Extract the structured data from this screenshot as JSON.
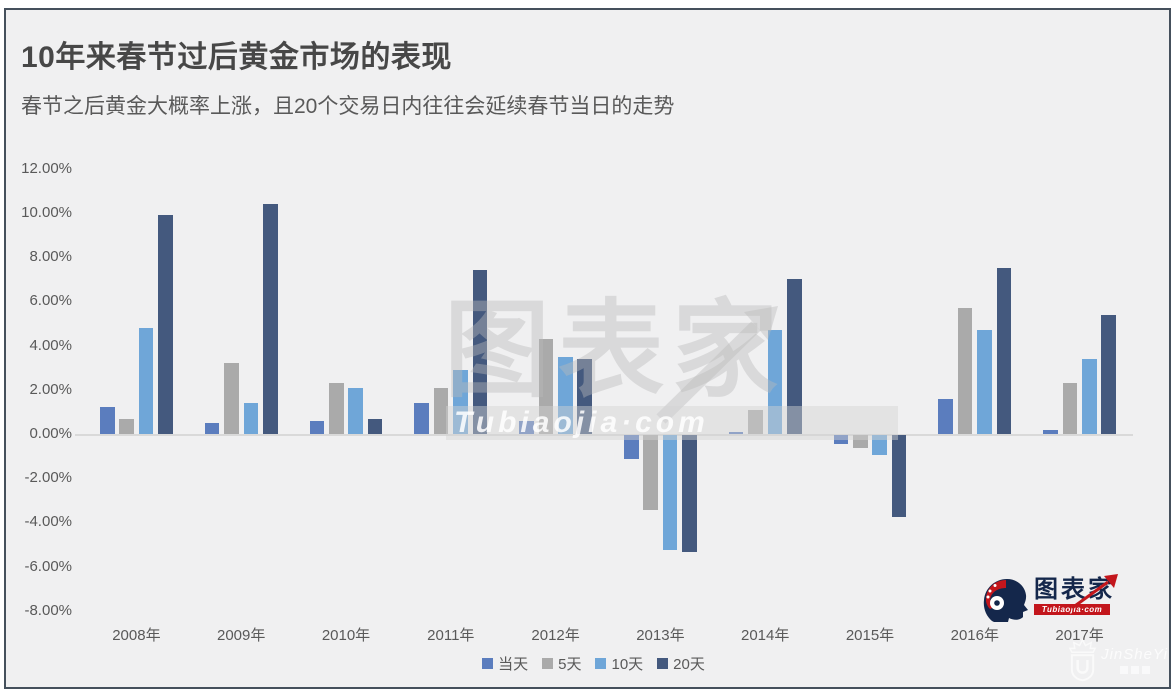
{
  "chart_data": {
    "type": "bar",
    "title": "10年来春节过后黄金市场的表现",
    "subtitle": "春节之后黄金大概率上涨，且20个交易日内往往会延续春节当日的走势",
    "categories": [
      "2008年",
      "2009年",
      "2010年",
      "2011年",
      "2012年",
      "2013年",
      "2014年",
      "2015年",
      "2016年",
      "2017年"
    ],
    "series": [
      {
        "name": "当天",
        "color": "#5b7dbe",
        "values": [
          1.2,
          0.5,
          0.6,
          1.4,
          0.6,
          -1.1,
          0.1,
          -0.4,
          1.6,
          0.2
        ]
      },
      {
        "name": "5天",
        "color": "#aaaaaa",
        "values": [
          0.7,
          3.2,
          2.3,
          2.1,
          4.3,
          -3.4,
          1.1,
          -0.6,
          5.7,
          2.3
        ]
      },
      {
        "name": "10天",
        "color": "#6fa6d8",
        "values": [
          4.8,
          1.4,
          2.1,
          2.9,
          3.5,
          -5.2,
          4.7,
          -0.9,
          4.7,
          3.4
        ]
      },
      {
        "name": "20天",
        "color": "#44597e",
        "values": [
          9.9,
          10.4,
          0.7,
          7.4,
          3.4,
          -5.3,
          7.0,
          -3.7,
          7.5,
          5.4
        ]
      }
    ],
    "yticks": [
      12,
      10,
      8,
      6,
      4,
      2,
      0,
      -2,
      -4,
      -6,
      -8
    ],
    "ytick_format": "0.00%",
    "ylim": [
      -8.5,
      12.5
    ],
    "xlabel": "",
    "ylabel": "",
    "grid": false,
    "legend_position": "bottom"
  },
  "watermarks": {
    "center_main": "图表家",
    "center_sub": "Tubiaojia·com",
    "corner_script": "JinSheYi"
  },
  "logo": {
    "brand": "图表家",
    "domain": "Tubiaojia·com"
  }
}
